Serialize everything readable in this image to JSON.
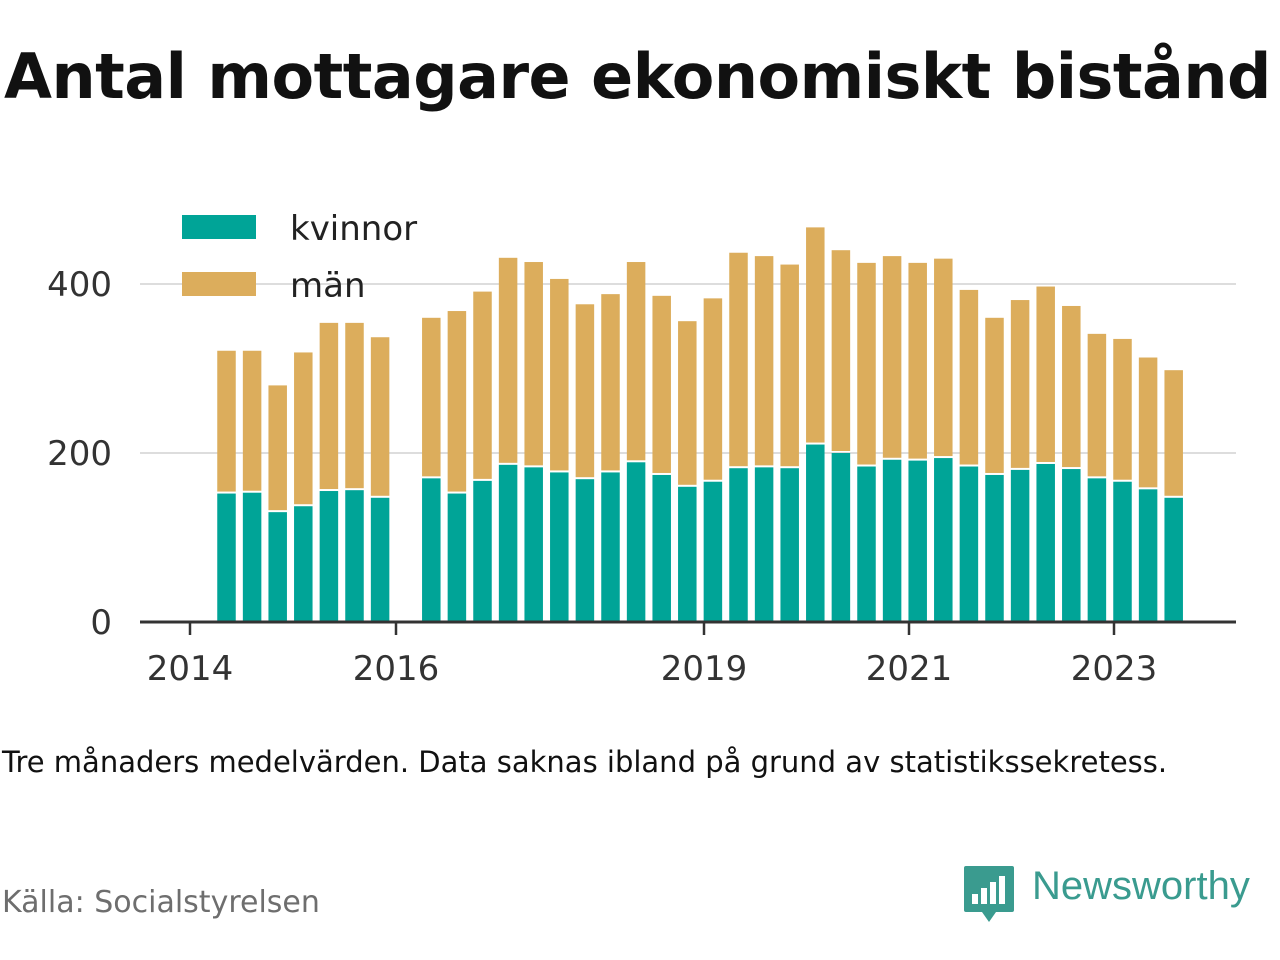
{
  "title": "Antal mottagare ekonomiskt bistånd",
  "note": "Tre månaders medelvärden. Data saknas ibland på grund av statistikssekretess.",
  "source": "Källa: Socialstyrelsen",
  "brand": {
    "name": "Newsworthy",
    "icon": "newsworthy-logo-icon",
    "color": "#3a9b8f"
  },
  "colors": {
    "kvinnor": "#00a497",
    "man": "#dcad5c",
    "grid": "#dddddd",
    "axis": "#333333"
  },
  "chart_data": {
    "type": "bar",
    "stacked": true,
    "legend_position": "top-left",
    "grid": true,
    "ylim": [
      0,
      480
    ],
    "yticks": [
      "0",
      "200",
      "400"
    ],
    "xticks": [
      "2014",
      "2016",
      "2019",
      "2021",
      "2023"
    ],
    "categories": [
      "2014-Q2",
      "2014-Q3",
      "2014-Q4",
      "2015-Q1",
      "2015-Q2",
      "2015-Q3",
      "2015-Q4",
      "2016-Q1",
      "2016-Q2",
      "2016-Q3",
      "2016-Q4",
      "2017-Q1",
      "2017-Q2",
      "2017-Q3",
      "2017-Q4",
      "2018-Q1",
      "2018-Q2",
      "2018-Q3",
      "2018-Q4",
      "2019-Q1",
      "2019-Q2",
      "2019-Q3",
      "2019-Q4",
      "2020-Q1",
      "2020-Q2",
      "2020-Q3",
      "2020-Q4",
      "2021-Q1",
      "2021-Q2",
      "2021-Q3",
      "2021-Q4",
      "2022-Q1",
      "2022-Q2",
      "2022-Q3",
      "2022-Q4",
      "2023-Q1",
      "2023-Q2",
      "2023-Q3"
    ],
    "series": [
      {
        "name": "kvinnor",
        "values": [
          152,
          153,
          130,
          137,
          155,
          156,
          147,
          null,
          170,
          152,
          167,
          186,
          183,
          177,
          169,
          177,
          189,
          174,
          160,
          166,
          182,
          183,
          182,
          210,
          200,
          184,
          192,
          191,
          194,
          184,
          174,
          180,
          187,
          181,
          170,
          166,
          157,
          147
        ]
      },
      {
        "name": "män",
        "values": [
          169,
          168,
          150,
          182,
          199,
          198,
          190,
          null,
          190,
          216,
          224,
          245,
          243,
          229,
          207,
          211,
          237,
          212,
          196,
          217,
          255,
          250,
          241,
          257,
          240,
          241,
          241,
          234,
          236,
          209,
          186,
          201,
          210,
          193,
          171,
          169,
          156,
          151
        ]
      }
    ]
  }
}
